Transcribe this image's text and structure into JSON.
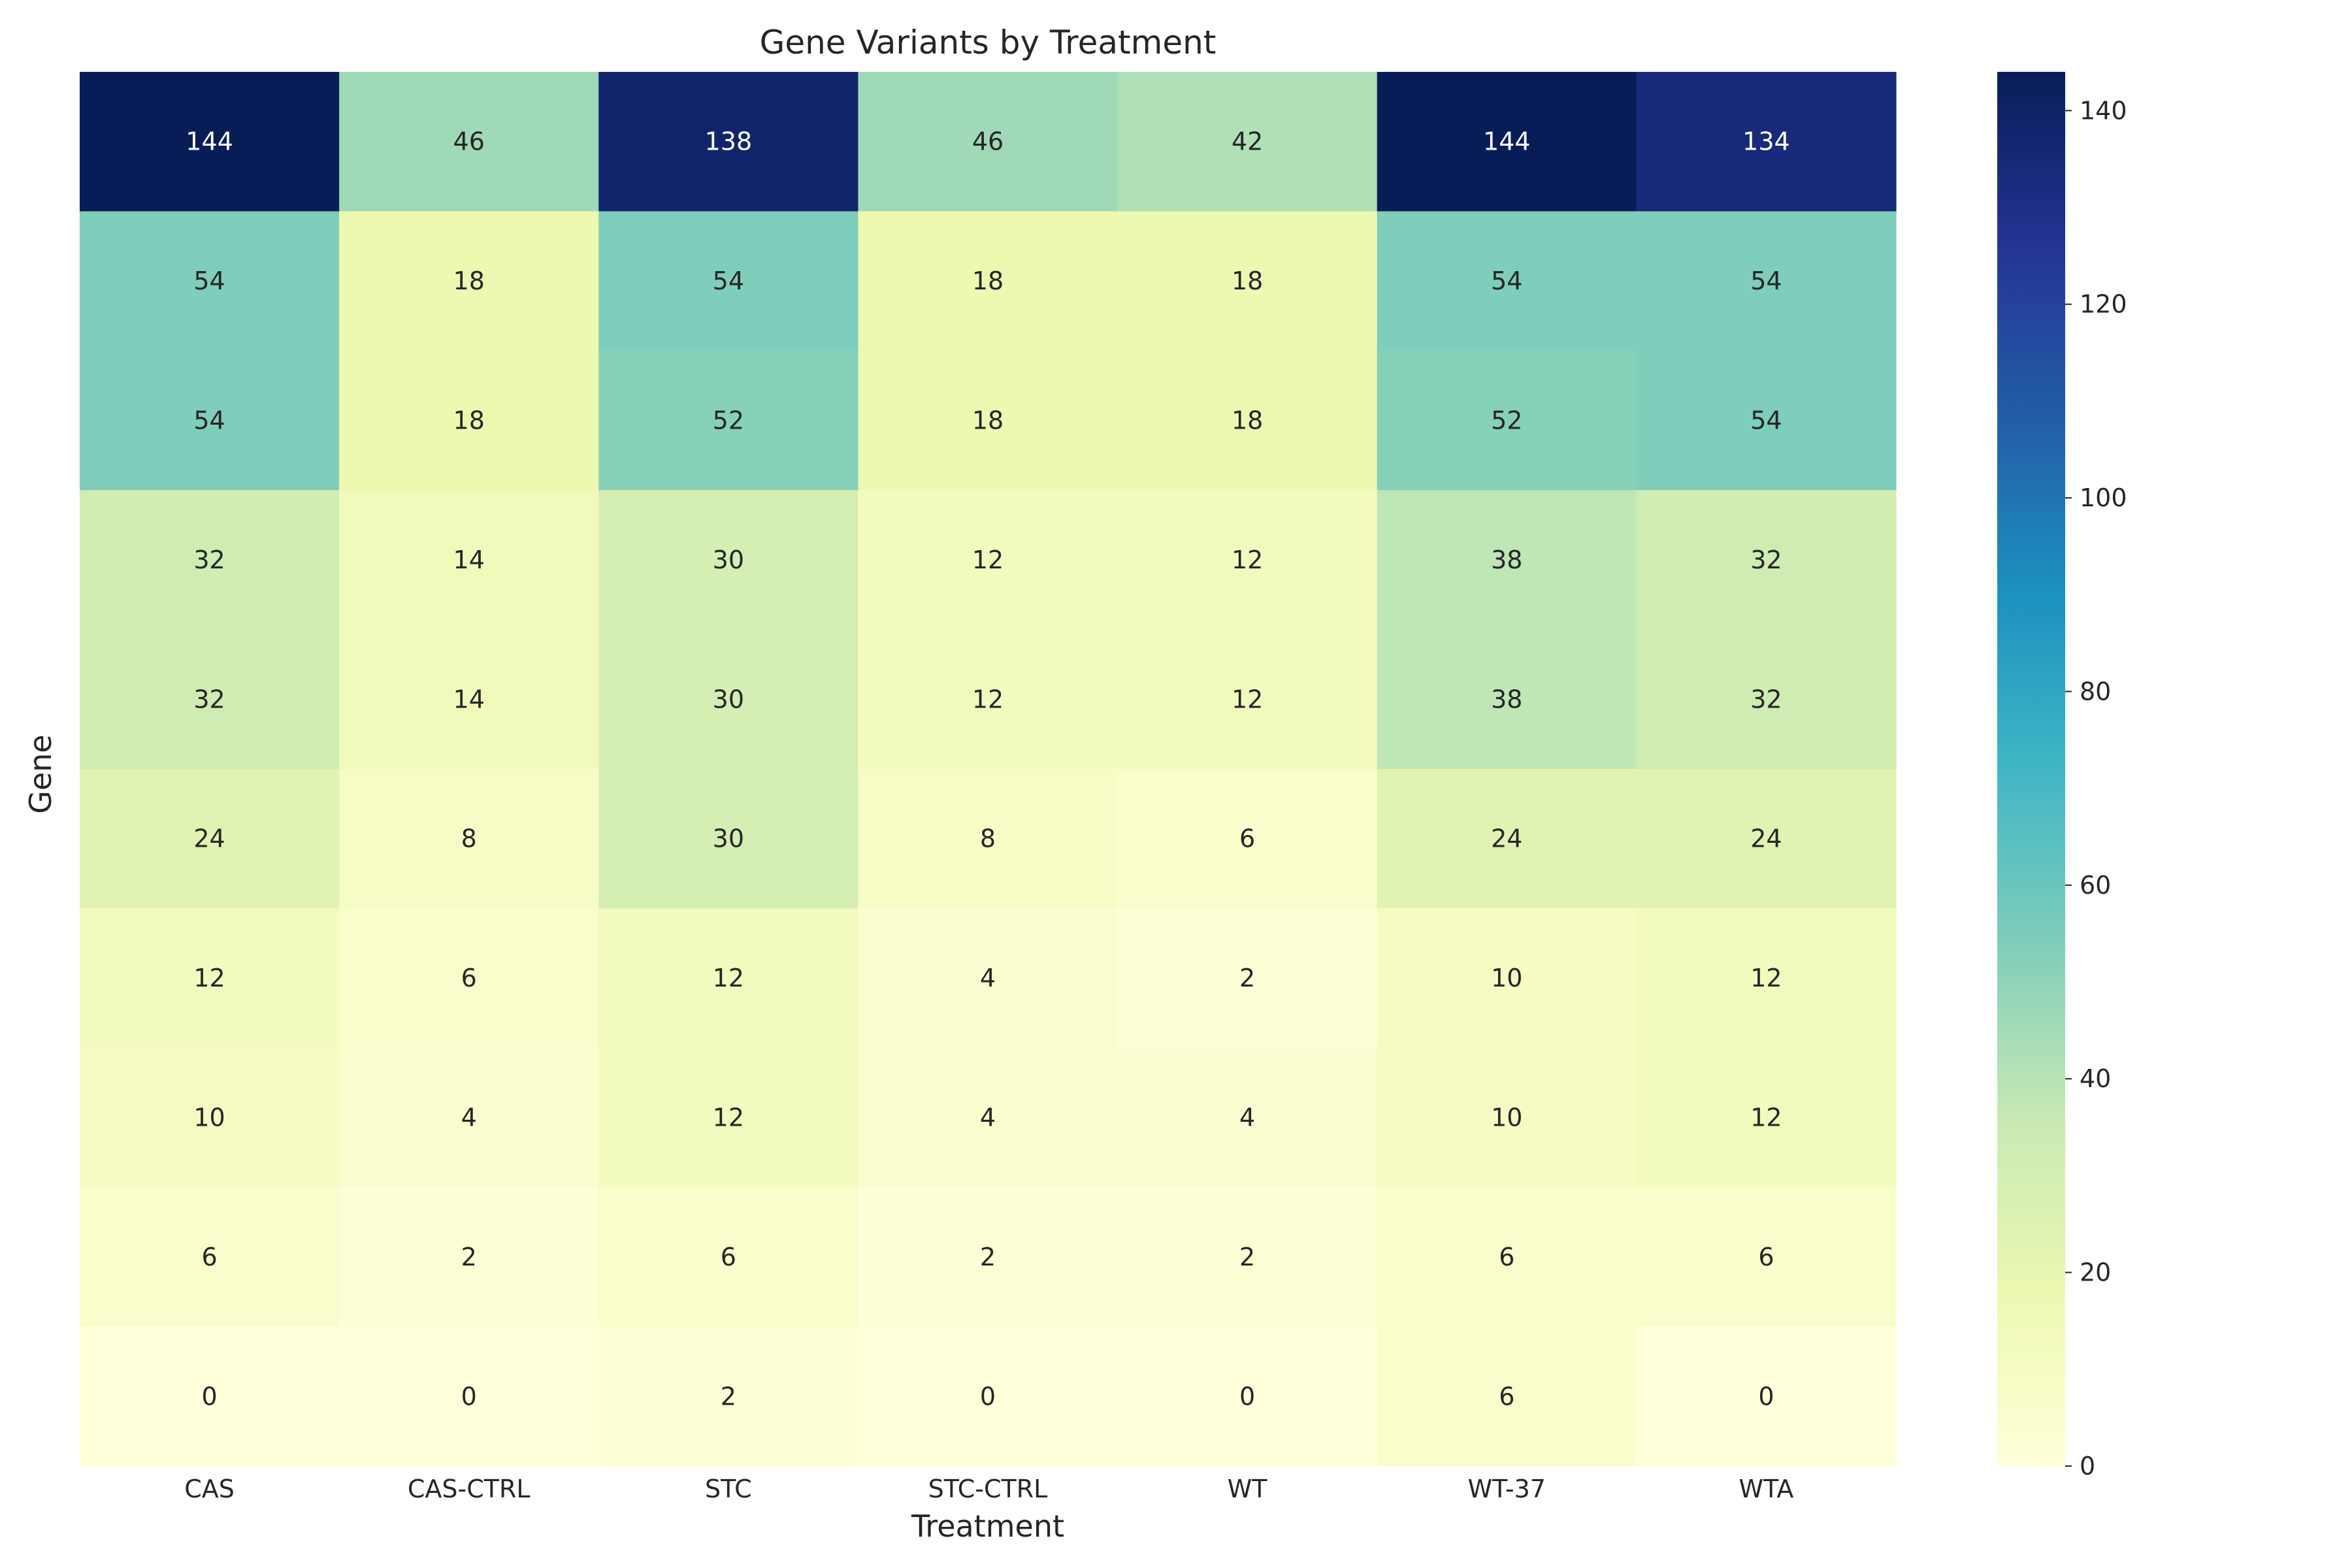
{
  "chart_data": {
    "type": "heatmap",
    "title": "Gene Variants by Treatment",
    "xlabel": "Treatment",
    "ylabel": "Gene",
    "x_categories": [
      "CAS",
      "CAS-CTRL",
      "STC",
      "STC-CTRL",
      "WT",
      "WT-37",
      "WTA"
    ],
    "y_categories": [],
    "values": [
      [
        144,
        46,
        138,
        46,
        42,
        144,
        134
      ],
      [
        54,
        18,
        54,
        18,
        18,
        54,
        54
      ],
      [
        54,
        18,
        52,
        18,
        18,
        52,
        54
      ],
      [
        32,
        14,
        30,
        12,
        12,
        38,
        32
      ],
      [
        32,
        14,
        30,
        12,
        12,
        38,
        32
      ],
      [
        24,
        8,
        30,
        8,
        6,
        24,
        24
      ],
      [
        12,
        6,
        12,
        4,
        2,
        10,
        12
      ],
      [
        10,
        4,
        12,
        4,
        4,
        10,
        12
      ],
      [
        6,
        2,
        6,
        2,
        2,
        6,
        6
      ],
      [
        0,
        0,
        2,
        0,
        0,
        6,
        0
      ]
    ],
    "colorbar": {
      "colormap": "YlGnBu",
      "vmin": 0,
      "vmax": 144,
      "ticks": [
        0,
        20,
        40,
        60,
        80,
        100,
        120,
        140
      ]
    },
    "annotations": true,
    "grid": false
  }
}
